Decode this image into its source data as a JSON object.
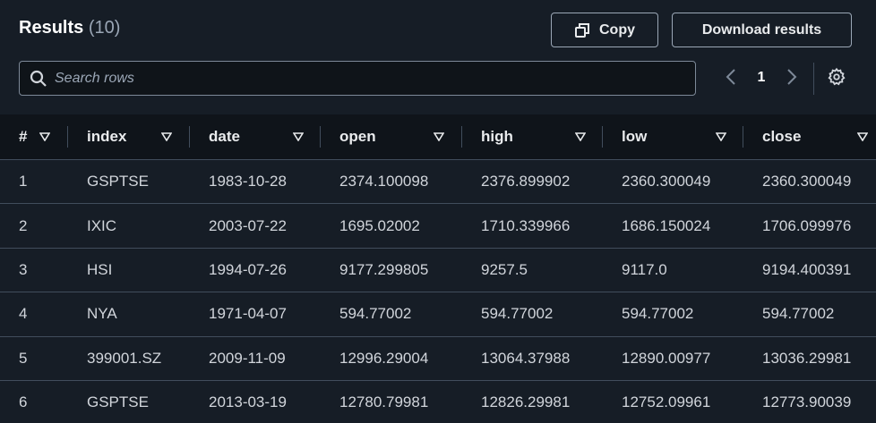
{
  "header": {
    "title": "Results",
    "count": "(10)",
    "copy_label": "Copy",
    "download_label": "Download results"
  },
  "search": {
    "placeholder": "Search rows",
    "value": ""
  },
  "pagination": {
    "current_page": "1"
  },
  "icons": {
    "copy": "copy-icon",
    "search": "search-icon",
    "prev": "chevron-left-icon",
    "next": "chevron-right-icon",
    "settings": "gear-icon",
    "sort": "caret-down-icon"
  },
  "colors": {
    "panel_bg": "#161d26",
    "header_row_bg": "#0f141a",
    "border": "#414d5c",
    "text": "#d1d5db",
    "title": "#ffffff",
    "muted": "#9ba7b6"
  },
  "table": {
    "columns": [
      "#",
      "index",
      "date",
      "open",
      "high",
      "low",
      "close"
    ],
    "rows": [
      [
        "1",
        "GSPTSE",
        "1983-10-28",
        "2374.100098",
        "2376.899902",
        "2360.300049",
        "2360.300049"
      ],
      [
        "2",
        "IXIC",
        "2003-07-22",
        "1695.02002",
        "1710.339966",
        "1686.150024",
        "1706.099976"
      ],
      [
        "3",
        "HSI",
        "1994-07-26",
        "9177.299805",
        "9257.5",
        "9117.0",
        "9194.400391"
      ],
      [
        "4",
        "NYA",
        "1971-04-07",
        "594.77002",
        "594.77002",
        "594.77002",
        "594.77002"
      ],
      [
        "5",
        "399001.SZ",
        "2009-11-09",
        "12996.29004",
        "13064.37988",
        "12890.00977",
        "13036.29981"
      ],
      [
        "6",
        "GSPTSE",
        "2013-03-19",
        "12780.79981",
        "12826.29981",
        "12752.09961",
        "12773.90039"
      ]
    ]
  }
}
